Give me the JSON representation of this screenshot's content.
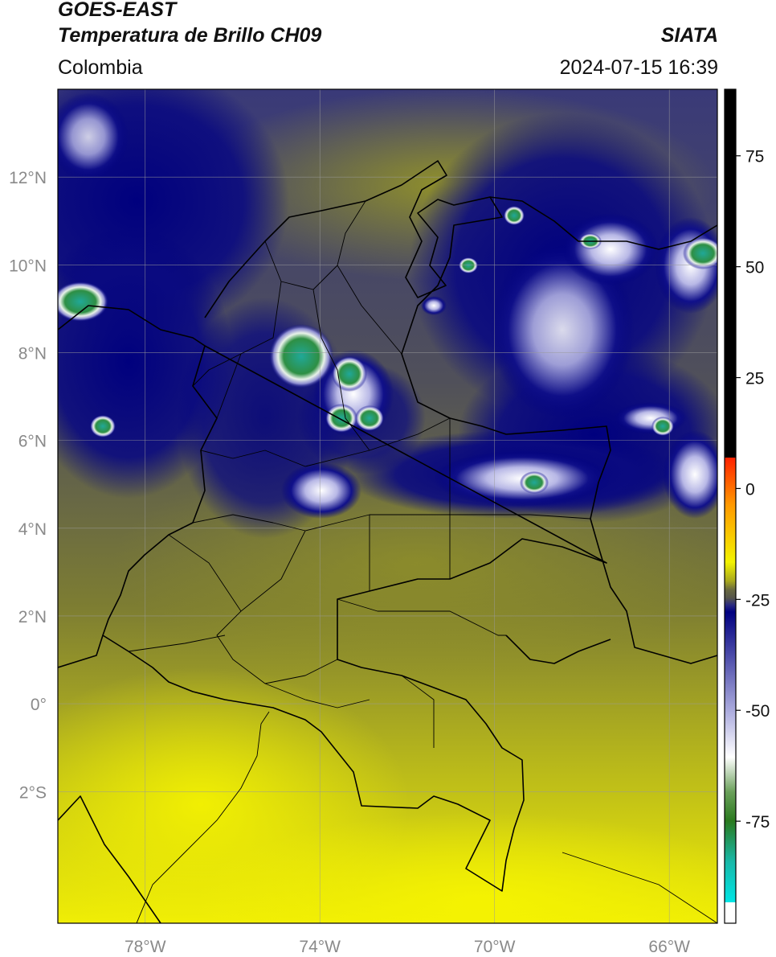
{
  "header": {
    "satellite": "GOES-EAST",
    "product": "Temperatura de Brillo CH09",
    "region": "Colombia",
    "agency": "SIATA",
    "datetime": "2024-07-15 16:39"
  },
  "map": {
    "lon_range": [
      -80.0,
      -64.9
    ],
    "lat_range": [
      -5.0,
      14.0
    ],
    "lon_ticks": [
      {
        "value": -78,
        "label": "78°W"
      },
      {
        "value": -74,
        "label": "74°W"
      },
      {
        "value": -70,
        "label": "70°W"
      },
      {
        "value": -66,
        "label": "66°W"
      }
    ],
    "lat_ticks": [
      {
        "value": 12,
        "label": "12°N"
      },
      {
        "value": 10,
        "label": "10°N"
      },
      {
        "value": 8,
        "label": "8°N"
      },
      {
        "value": 6,
        "label": "6°N"
      },
      {
        "value": 4,
        "label": "4°N"
      },
      {
        "value": 2,
        "label": "2°N"
      },
      {
        "value": 0,
        "label": "0°"
      },
      {
        "value": -2,
        "label": "2°S"
      }
    ],
    "grid": true
  },
  "colorbar": {
    "range": [
      -98,
      90
    ],
    "ticks": [
      {
        "value": 75,
        "label": "75"
      },
      {
        "value": 50,
        "label": "50"
      },
      {
        "value": 25,
        "label": "25"
      },
      {
        "value": 0,
        "label": "0"
      },
      {
        "value": -25,
        "label": "-25"
      },
      {
        "value": -50,
        "label": "-50"
      },
      {
        "value": -75,
        "label": "-75"
      }
    ],
    "colors": {
      "black": "#000000",
      "red": "#ff2a00",
      "orange": "#ff9900",
      "yellow": "#f6f000",
      "olive": "#8d8d20",
      "gray": "#5a5a52",
      "navy": "#000080",
      "lavender": "#b0b0e0",
      "white": "#ffffff",
      "green": "#2a7a1e",
      "teal": "#18b8a8",
      "cyan": "#00e5e5"
    }
  }
}
